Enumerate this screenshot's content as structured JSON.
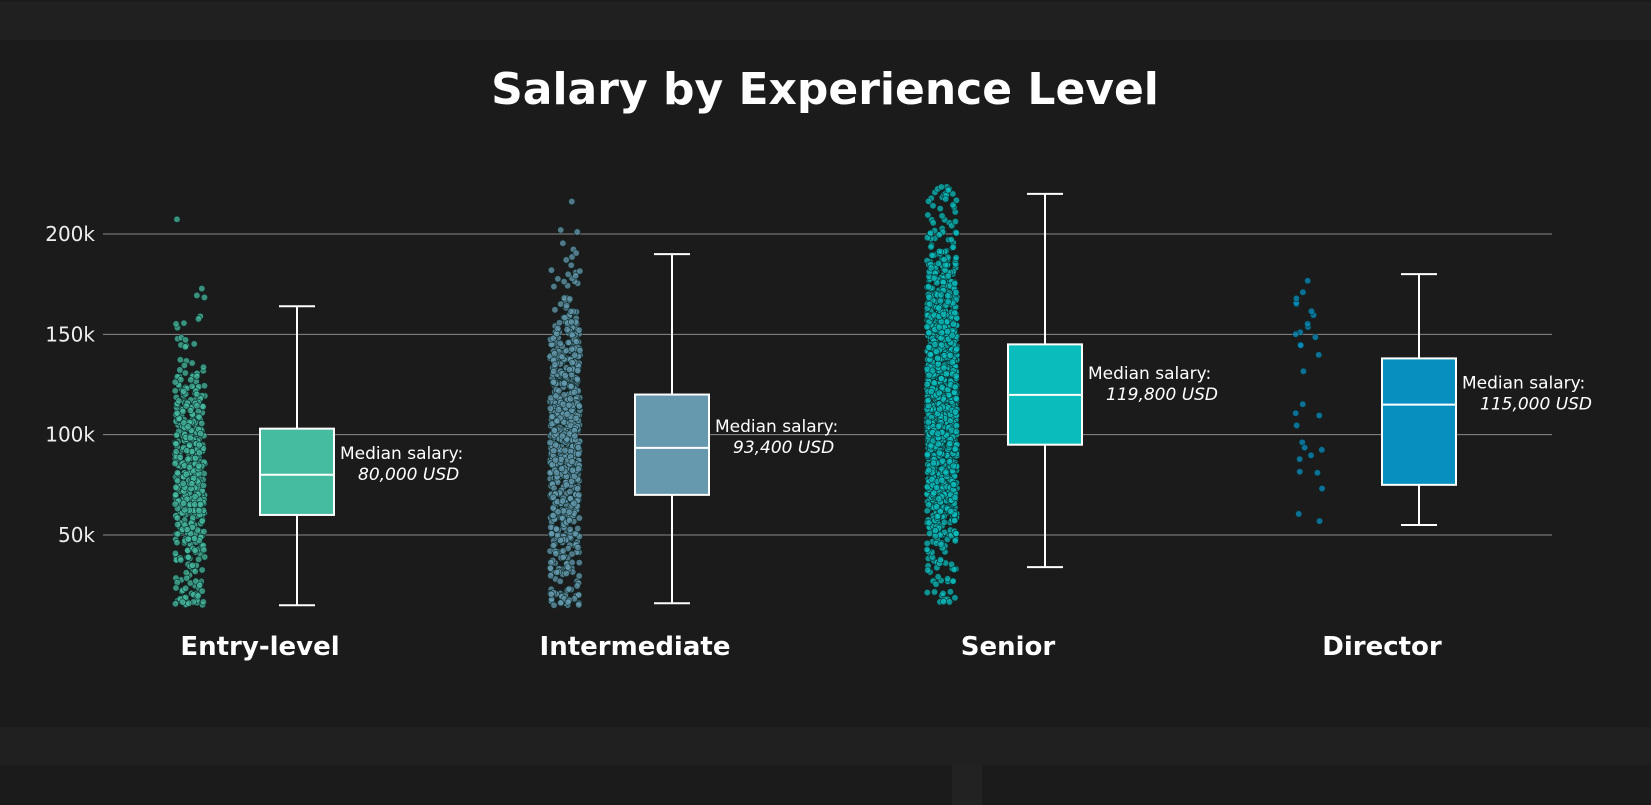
{
  "chart_data": {
    "type": "box",
    "title": "Salary by Experience Level",
    "xlabel": "",
    "ylabel": "",
    "ylim": [
      10000,
      225000
    ],
    "y_ticks": [
      50000,
      100000,
      150000,
      200000
    ],
    "y_tick_labels": [
      "50k",
      "100k",
      "150k",
      "200k"
    ],
    "grid": true,
    "series": [
      {
        "category": "Entry-level",
        "color": "#45bb9f",
        "min": 15000,
        "q1": 60000,
        "median": 80000,
        "q3": 103000,
        "max": 164000,
        "point_range": [
          15000,
          224000
        ],
        "point_count": 500,
        "annotation_line1": "Median salary:",
        "annotation_line2": "80,000 USD"
      },
      {
        "category": "Intermediate",
        "color": "#6699ae",
        "min": 16000,
        "q1": 70000,
        "median": 93400,
        "q3": 120000,
        "max": 190000,
        "point_range": [
          15000,
          224000
        ],
        "point_count": 800,
        "annotation_line1": "Median salary:",
        "annotation_line2": "93,400 USD"
      },
      {
        "category": "Senior",
        "color": "#0bbcbc",
        "min": 34000,
        "q1": 95000,
        "median": 119800,
        "q3": 145000,
        "max": 220000,
        "point_range": [
          16000,
          224000
        ],
        "point_count": 1500,
        "annotation_line1": "Median salary:",
        "annotation_line2": "119,800 USD"
      },
      {
        "category": "Director",
        "color": "#078fc0",
        "min": 55000,
        "q1": 75000,
        "median": 115000,
        "q3": 138000,
        "max": 180000,
        "point_range": [
          55000,
          180000
        ],
        "point_count": 30,
        "annotation_line1": "Median salary:",
        "annotation_line2": "115,000 USD"
      }
    ]
  }
}
